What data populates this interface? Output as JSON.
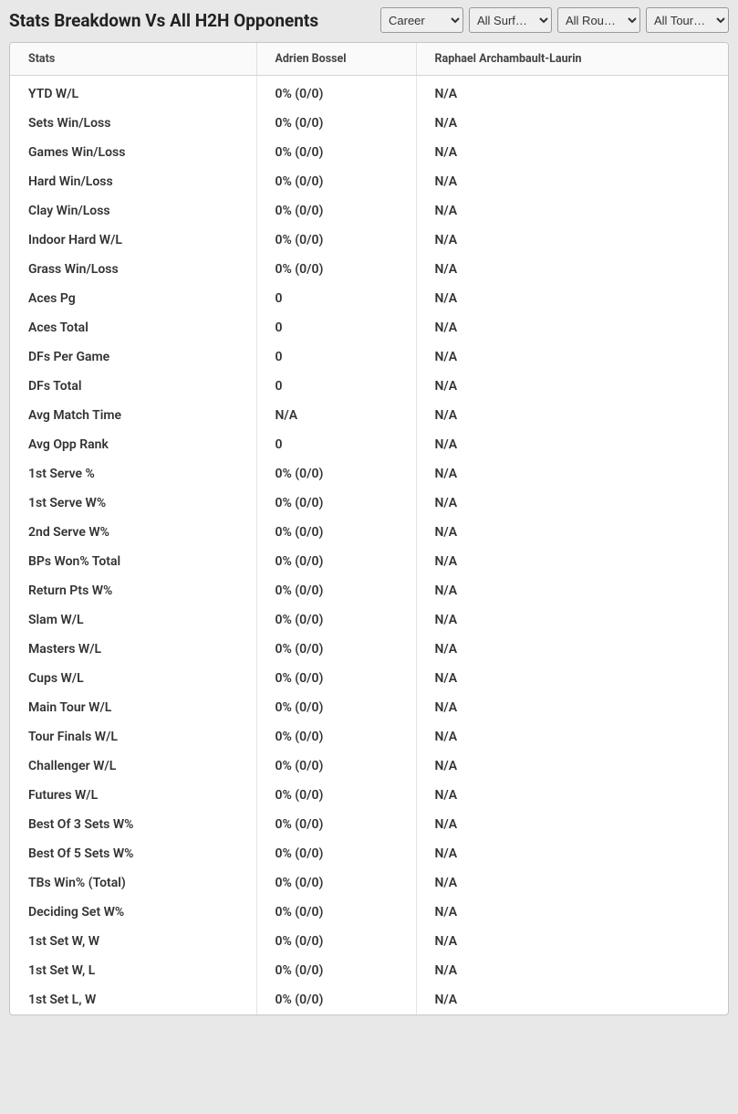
{
  "header": {
    "title": "Stats Breakdown Vs All H2H Opponents",
    "filters": {
      "period": {
        "selected": "Career",
        "options": [
          "Career"
        ]
      },
      "surface": {
        "selected": "All Surf…",
        "options": [
          "All Surf…"
        ]
      },
      "round": {
        "selected": "All Rou…",
        "options": [
          "All Rou…"
        ]
      },
      "tour": {
        "selected": "All Tour…",
        "options": [
          "All Tour…"
        ]
      }
    }
  },
  "table": {
    "columns": [
      "Stats",
      "Adrien Bossel",
      "Raphael Archambault-Laurin"
    ],
    "rows": [
      [
        "YTD W/L",
        "0% (0/0)",
        "N/A"
      ],
      [
        "Sets Win/Loss",
        "0% (0/0)",
        "N/A"
      ],
      [
        "Games Win/Loss",
        "0% (0/0)",
        "N/A"
      ],
      [
        "Hard Win/Loss",
        "0% (0/0)",
        "N/A"
      ],
      [
        "Clay Win/Loss",
        "0% (0/0)",
        "N/A"
      ],
      [
        "Indoor Hard W/L",
        "0% (0/0)",
        "N/A"
      ],
      [
        "Grass Win/Loss",
        "0% (0/0)",
        "N/A"
      ],
      [
        "Aces Pg",
        "0",
        "N/A"
      ],
      [
        "Aces Total",
        "0",
        "N/A"
      ],
      [
        "DFs Per Game",
        "0",
        "N/A"
      ],
      [
        "DFs Total",
        "0",
        "N/A"
      ],
      [
        "Avg Match Time",
        "N/A",
        "N/A"
      ],
      [
        "Avg Opp Rank",
        "0",
        "N/A"
      ],
      [
        "1st Serve %",
        "0% (0/0)",
        "N/A"
      ],
      [
        "1st Serve W%",
        "0% (0/0)",
        "N/A"
      ],
      [
        "2nd Serve W%",
        "0% (0/0)",
        "N/A"
      ],
      [
        "BPs Won% Total",
        "0% (0/0)",
        "N/A"
      ],
      [
        "Return Pts W%",
        "0% (0/0)",
        "N/A"
      ],
      [
        "Slam W/L",
        "0% (0/0)",
        "N/A"
      ],
      [
        "Masters W/L",
        "0% (0/0)",
        "N/A"
      ],
      [
        "Cups W/L",
        "0% (0/0)",
        "N/A"
      ],
      [
        "Main Tour W/L",
        "0% (0/0)",
        "N/A"
      ],
      [
        "Tour Finals W/L",
        "0% (0/0)",
        "N/A"
      ],
      [
        "Challenger W/L",
        "0% (0/0)",
        "N/A"
      ],
      [
        "Futures W/L",
        "0% (0/0)",
        "N/A"
      ],
      [
        "Best Of 3 Sets W%",
        "0% (0/0)",
        "N/A"
      ],
      [
        "Best Of 5 Sets W%",
        "0% (0/0)",
        "N/A"
      ],
      [
        "TBs Win% (Total)",
        "0% (0/0)",
        "N/A"
      ],
      [
        "Deciding Set W%",
        "0% (0/0)",
        "N/A"
      ],
      [
        "1st Set W, W",
        "0% (0/0)",
        "N/A"
      ],
      [
        "1st Set W, L",
        "0% (0/0)",
        "N/A"
      ],
      [
        "1st Set L, W",
        "0% (0/0)",
        "N/A"
      ]
    ]
  },
  "styling": {
    "background_color": "#e8e8e8",
    "table_background": "#ffffff",
    "header_background": "#fafafa",
    "border_color": "#c5c5c5",
    "cell_border_color": "#e5e5e5",
    "text_color": "#333333",
    "title_fontsize": 19,
    "header_fontsize": 12.5,
    "cell_fontsize": 14,
    "cell_fontweight": 600
  }
}
